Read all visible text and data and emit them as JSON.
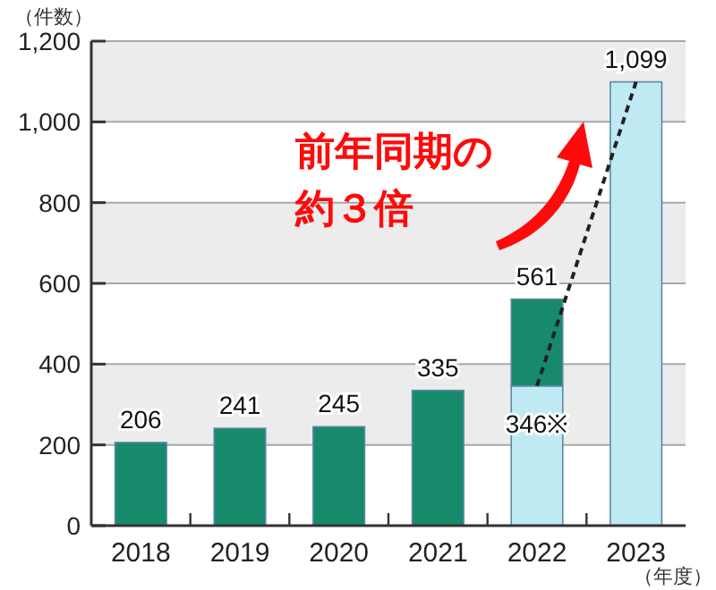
{
  "chart_data": {
    "type": "bar",
    "stacked": true,
    "ylabel": "（件数）",
    "xlabel": "（年度）",
    "categories": [
      "2018",
      "2019",
      "2020",
      "2021",
      "2022",
      "2023"
    ],
    "series": [
      {
        "color": "#bfeaf4",
        "values": [
          null,
          null,
          null,
          null,
          346,
          1099
        ],
        "value_labels": [
          null,
          null,
          null,
          null,
          "346※",
          null
        ]
      },
      {
        "color": "#178a6c",
        "values": [
          206,
          241,
          245,
          335,
          215,
          null
        ]
      },
      {
        "type": "line",
        "color": "#222222",
        "line_style": "dashed",
        "marker": "none",
        "values": [
          null,
          null,
          null,
          null,
          346,
          1099
        ]
      }
    ],
    "totals": [
      "206",
      "241",
      "245",
      "335",
      "561",
      "1,099"
    ],
    "ylim": [
      0,
      1200
    ],
    "yticks": [
      0,
      200,
      400,
      600,
      800,
      {
        "value": 1000,
        "label": "1,000"
      },
      {
        "value": 1200,
        "label": "1,200"
      }
    ],
    "grid": "y",
    "bands": [
      {
        "axis": "y",
        "from": 200,
        "to": 400,
        "color": "#ececec"
      },
      {
        "axis": "y",
        "from": 600,
        "to": 800,
        "color": "#ececec"
      },
      {
        "axis": "y",
        "from": 1000,
        "to": 1200,
        "color": "#ececec"
      }
    ],
    "annotations": [
      "前年同期の",
      "約３倍"
    ]
  }
}
